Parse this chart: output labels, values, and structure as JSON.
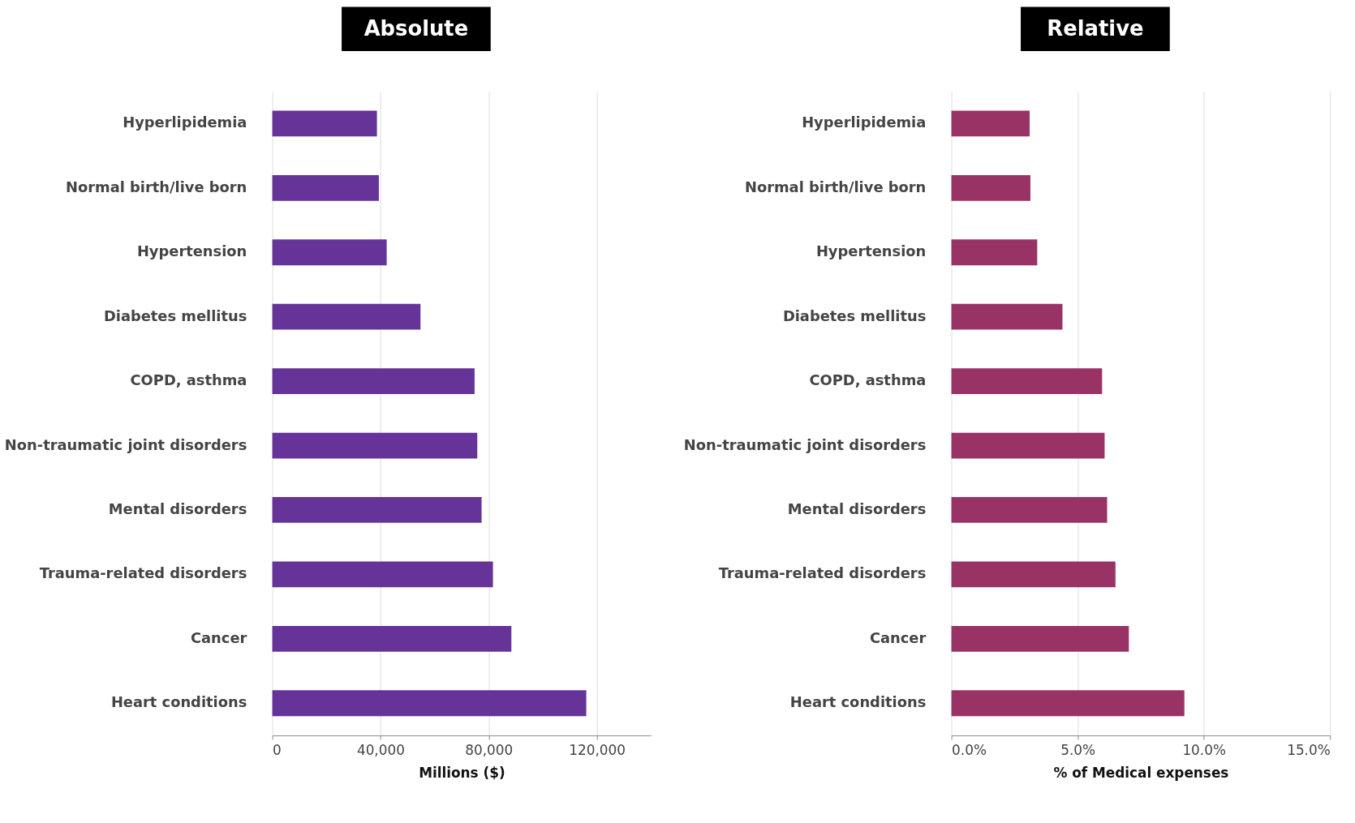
{
  "chart_data": [
    {
      "type": "bar",
      "orientation": "horizontal",
      "title": "Absolute",
      "xlabel": "Millions ($)",
      "categories": [
        "Hyperlipidemia",
        "Normal birth/live born",
        "Hypertension",
        "Diabetes mellitus",
        "COPD, asthma",
        "Non-traumatic joint disorders",
        "Mental disorders",
        "Trauma-related disorders",
        "Cancer",
        "Heart conditions"
      ],
      "values": [
        38700,
        39400,
        42300,
        54800,
        74800,
        75800,
        77400,
        81600,
        88400,
        116100
      ],
      "color": "#663399",
      "xlim": [
        0,
        140000
      ],
      "xticks": [
        0,
        {
          "value": 40000,
          "label": "40,000"
        },
        {
          "value": 80000,
          "label": "80,000"
        },
        {
          "value": 120000,
          "label": "120,000"
        }
      ],
      "grid": "x"
    },
    {
      "type": "bar",
      "orientation": "horizontal",
      "title": "Relative",
      "xlabel": "% of Medical expenses",
      "categories": [
        "Hyperlipidemia",
        "Normal birth/live born",
        "Hypertension",
        "Diabetes mellitus",
        "COPD, asthma",
        "Non-traumatic joint disorders",
        "Mental disorders",
        "Trauma-related disorders",
        "Cancer",
        "Heart conditions"
      ],
      "values": [
        3.1,
        3.13,
        3.4,
        4.4,
        5.97,
        6.07,
        6.17,
        6.5,
        7.03,
        9.23
      ],
      "color": "#993366",
      "xlim": [
        0,
        15
      ],
      "xticks": [
        {
          "value": 0,
          "label": "0.0%"
        },
        {
          "value": 5,
          "label": "5.0%"
        },
        {
          "value": 10,
          "label": "10.0%"
        },
        {
          "value": 15,
          "label": "15.0%"
        }
      ],
      "grid": "x"
    }
  ]
}
